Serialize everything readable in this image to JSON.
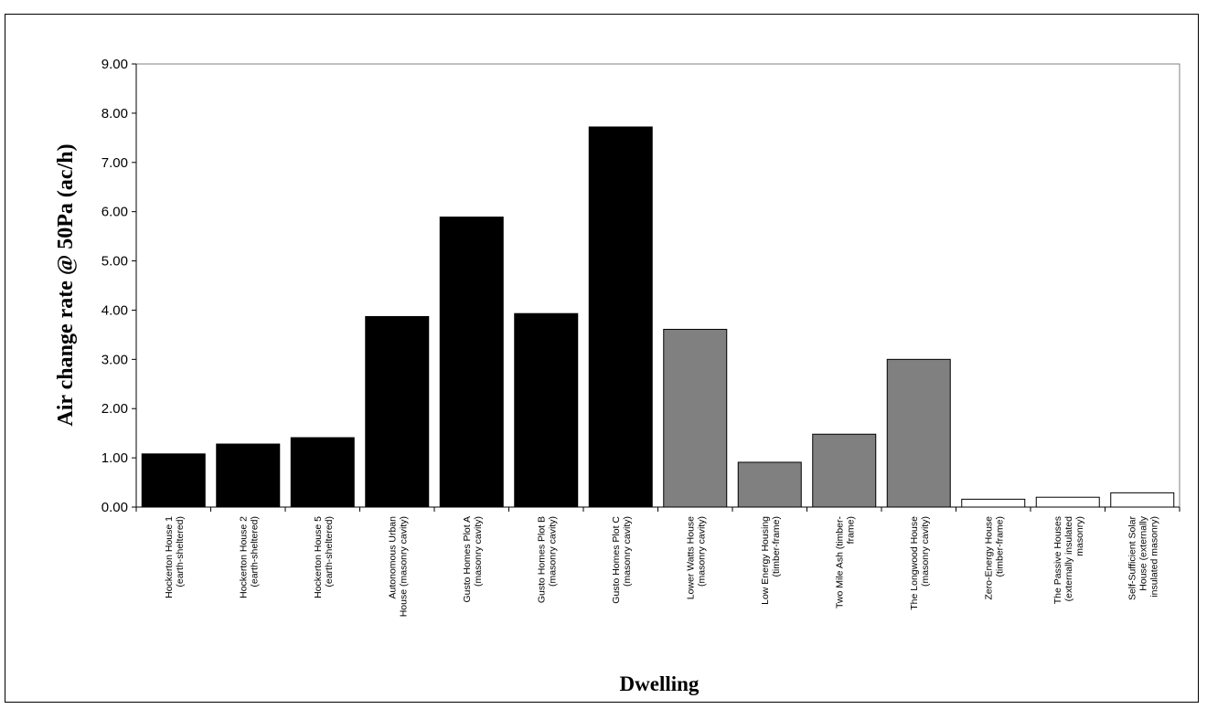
{
  "chart_data": {
    "type": "bar",
    "xlabel": "Dwelling",
    "ylabel": "Air change rate @ 50Pa (ac/h)",
    "ylim": [
      0,
      9
    ],
    "ytick_step": 1,
    "ytick_labels": [
      "0.00",
      "1.00",
      "2.00",
      "3.00",
      "4.00",
      "5.00",
      "6.00",
      "7.00",
      "8.00",
      "9.00"
    ],
    "grid": false,
    "legend": "none",
    "categories": [
      [
        "Hockerton House 1",
        "(earth-sheltered)"
      ],
      [
        "Hockerton House 2",
        "(earth-sheltered)"
      ],
      [
        "Hockerton House 5",
        "(earth-sheltered)"
      ],
      [
        "Autonomous Urban",
        "House (masonry cavity)"
      ],
      [
        "Gusto Homes Plot A",
        "(masonry cavity)"
      ],
      [
        "Gusto Homes Plot B",
        "(masonry cavity)"
      ],
      [
        "Gusto Homes Plot C",
        "(masonry cavity)"
      ],
      [
        "Lower Watts House",
        "(masonry cavity)"
      ],
      [
        "Low Energy Housing",
        "(timber-frame)"
      ],
      [
        "Two Mile Ash (timber-",
        "frame)"
      ],
      [
        "The Longwood House",
        "(masonry cavity)"
      ],
      [
        "Zero-Energy House",
        "(timber-frame)"
      ],
      [
        "The Passive Houses",
        "(externally insulated",
        "masonry)"
      ],
      [
        "Self-Sufficient Solar",
        "House (externally",
        "insulated masonry)"
      ]
    ],
    "values": [
      1.08,
      1.28,
      1.41,
      3.87,
      5.89,
      3.93,
      7.72,
      3.61,
      0.91,
      1.48,
      3.0,
      0.16,
      0.2,
      0.29
    ],
    "bar_colors": [
      "#000000",
      "#000000",
      "#000000",
      "#000000",
      "#000000",
      "#000000",
      "#000000",
      "#808080",
      "#808080",
      "#808080",
      "#808080",
      "#ffffff",
      "#ffffff",
      "#ffffff"
    ],
    "bar_edge_color": "#000000"
  }
}
